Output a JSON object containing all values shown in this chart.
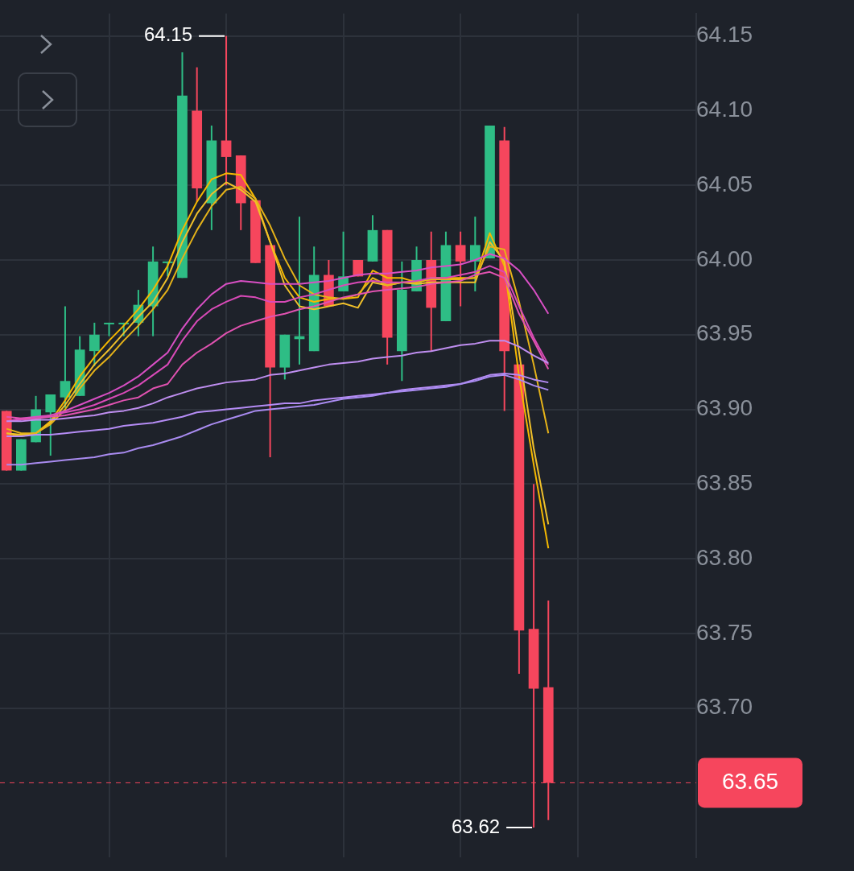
{
  "chart_data": {
    "type": "candlestick",
    "categories": [
      null,
      null,
      null,
      null,
      null,
      null,
      null,
      null,
      null,
      null,
      null,
      null,
      null,
      null,
      null,
      null,
      null,
      null,
      null,
      null,
      null,
      null,
      null,
      null,
      null,
      null,
      null,
      null,
      null,
      null,
      null,
      null,
      null,
      null,
      null,
      null,
      null,
      null
    ],
    "ohlc": [
      [
        63.899,
        63.899,
        63.859,
        63.859
      ],
      [
        63.859,
        63.88,
        63.859,
        63.88
      ],
      [
        63.878,
        63.909,
        63.878,
        63.9
      ],
      [
        63.898,
        63.91,
        63.869,
        63.91
      ],
      [
        63.908,
        63.969,
        63.901,
        63.919
      ],
      [
        63.909,
        63.949,
        63.909,
        63.94
      ],
      [
        63.939,
        63.958,
        63.929,
        63.95
      ],
      [
        63.958,
        63.958,
        63.949,
        63.958
      ],
      [
        63.958,
        63.958,
        63.949,
        63.958
      ],
      [
        63.958,
        63.98,
        63.949,
        63.97
      ],
      [
        63.969,
        64.009,
        63.949,
        63.999
      ],
      [
        63.999,
        63.999,
        63.989,
        63.999
      ],
      [
        63.988,
        64.139,
        63.988,
        64.11
      ],
      [
        64.1,
        64.129,
        64.039,
        64.048
      ],
      [
        64.038,
        64.09,
        64.02,
        64.08
      ],
      [
        64.08,
        64.15,
        64.05,
        64.069
      ],
      [
        64.07,
        64.07,
        64.02,
        64.038
      ],
      [
        64.04,
        64.04,
        63.998,
        63.998
      ],
      [
        64.01,
        64.01,
        63.868,
        63.928
      ],
      [
        63.928,
        63.95,
        63.92,
        63.95
      ],
      [
        63.947,
        64.029,
        63.93,
        63.949
      ],
      [
        63.939,
        64.009,
        63.939,
        63.99
      ],
      [
        63.99,
        64.0,
        63.969,
        63.969
      ],
      [
        63.979,
        64.019,
        63.979,
        63.989
      ],
      [
        64.0,
        64.0,
        63.989,
        63.989
      ],
      [
        63.999,
        64.03,
        63.999,
        64.02
      ],
      [
        64.02,
        64.02,
        63.93,
        63.948
      ],
      [
        63.939,
        63.999,
        63.919,
        63.98
      ],
      [
        63.979,
        64.009,
        63.979,
        64.0
      ],
      [
        64.0,
        64.019,
        63.939,
        63.968
      ],
      [
        63.959,
        64.019,
        63.959,
        64.01
      ],
      [
        64.01,
        64.019,
        63.969,
        63.999
      ],
      [
        63.999,
        64.029,
        63.979,
        64.01
      ],
      [
        64.001,
        64.09,
        64.001,
        64.09
      ],
      [
        64.08,
        64.089,
        63.899,
        63.939
      ],
      [
        63.93,
        63.93,
        63.723,
        63.752
      ],
      [
        63.753,
        63.85,
        63.62,
        63.713
      ],
      [
        63.714,
        63.772,
        63.625,
        63.65
      ]
    ],
    "colors": [
      "#f6465d",
      "#2ebd85",
      "#2ebd85",
      "#2ebd85",
      "#2ebd85",
      "#2ebd85",
      "#2ebd85",
      "#2ebd85",
      "#2ebd85",
      "#2ebd85",
      "#2ebd85",
      "#2ebd85",
      "#2ebd85",
      "#f6465d",
      "#2ebd85",
      "#f6465d",
      "#f6465d",
      "#f6465d",
      "#f6465d",
      "#2ebd85",
      "#2ebd85",
      "#2ebd85",
      "#f6465d",
      "#2ebd85",
      "#f6465d",
      "#2ebd85",
      "#f6465d",
      "#2ebd85",
      "#2ebd85",
      "#f6465d",
      "#2ebd85",
      "#f6465d",
      "#2ebd85",
      "#2ebd85",
      "#f6465d",
      "#f6465d",
      "#f6465d",
      "#f6465d"
    ],
    "series": [
      {
        "type": "line",
        "color": "#a98bf0",
        "values": [
          63.863,
          63.863,
          63.864,
          63.865,
          63.866,
          63.867,
          63.868,
          63.87,
          63.871,
          63.874,
          63.876,
          63.879,
          63.882,
          63.886,
          63.89,
          63.893,
          63.896,
          63.899,
          63.9,
          63.901,
          63.902,
          63.903,
          63.905,
          63.907,
          63.908,
          63.909,
          63.911,
          63.912,
          63.913,
          63.914,
          63.915,
          63.917,
          63.919,
          63.922,
          63.923,
          63.92,
          63.916,
          63.913
        ]
      },
      {
        "type": "line",
        "color": "#b58cf5",
        "values": [
          63.882,
          63.882,
          63.883,
          63.883,
          63.884,
          63.885,
          63.886,
          63.887,
          63.889,
          63.89,
          63.891,
          63.893,
          63.895,
          63.898,
          63.899,
          63.9,
          63.901,
          63.902,
          63.903,
          63.904,
          63.904,
          63.906,
          63.907,
          63.908,
          63.909,
          63.91,
          63.911,
          63.913,
          63.914,
          63.915,
          63.916,
          63.917,
          63.92,
          63.923,
          63.924,
          63.923,
          63.92,
          63.918
        ]
      },
      {
        "type": "line",
        "color": "#bf8ef0",
        "values": [
          63.892,
          63.892,
          63.893,
          63.893,
          63.894,
          63.895,
          63.896,
          63.898,
          63.899,
          63.901,
          63.904,
          63.908,
          63.911,
          63.914,
          63.916,
          63.918,
          63.919,
          63.92,
          63.923,
          63.924,
          63.926,
          63.928,
          63.93,
          63.931,
          63.932,
          63.934,
          63.935,
          63.936,
          63.938,
          63.939,
          63.941,
          63.943,
          63.944,
          63.946,
          63.946,
          63.942,
          63.936,
          63.931
        ]
      },
      {
        "type": "line",
        "color": "#e052b0",
        "values": [
          63.895,
          63.894,
          63.894,
          63.895,
          63.896,
          63.898,
          63.9,
          63.903,
          63.906,
          63.908,
          63.914,
          63.917,
          63.93,
          63.938,
          63.944,
          63.951,
          63.956,
          63.959,
          63.962,
          63.964,
          63.967,
          63.969,
          63.972,
          63.975,
          63.977,
          63.979,
          63.98,
          63.981,
          63.982,
          63.984,
          63.985,
          63.986,
          63.99,
          63.992,
          63.988,
          63.964,
          63.946,
          63.927
        ]
      },
      {
        "type": "line",
        "color": "#d94ab8",
        "values": [
          63.892,
          63.893,
          63.894,
          63.896,
          63.898,
          63.9,
          63.903,
          63.907,
          63.911,
          63.916,
          63.923,
          63.93,
          63.946,
          63.959,
          63.967,
          63.972,
          63.976,
          63.975,
          63.972,
          63.972,
          63.975,
          63.977,
          63.98,
          63.983,
          63.985,
          63.986,
          63.985,
          63.985,
          63.986,
          63.988,
          63.988,
          63.99,
          63.992,
          63.996,
          63.992,
          63.969,
          63.948,
          63.93
        ]
      },
      {
        "type": "line",
        "color": "#d84fc4",
        "values": [
          63.892,
          63.894,
          63.895,
          63.896,
          63.899,
          63.903,
          63.907,
          63.911,
          63.916,
          63.922,
          63.93,
          63.938,
          63.954,
          63.967,
          63.977,
          63.984,
          63.986,
          63.985,
          63.984,
          63.984,
          63.984,
          63.985,
          63.986,
          63.988,
          63.99,
          63.991,
          63.991,
          63.992,
          63.993,
          63.995,
          63.996,
          63.997,
          64.0,
          64.004,
          64.001,
          63.993,
          63.98,
          63.964
        ]
      },
      {
        "type": "line",
        "color": "#e6b319",
        "values": [
          63.887,
          63.884,
          63.884,
          63.89,
          63.9,
          63.914,
          63.926,
          63.935,
          63.946,
          63.956,
          63.967,
          63.98,
          64.001,
          64.02,
          64.036,
          64.047,
          64.049,
          64.041,
          64.023,
          64.001,
          63.983,
          63.977,
          63.975,
          63.974,
          63.977,
          63.988,
          63.983,
          63.985,
          63.985,
          63.987,
          63.987,
          63.987,
          63.988,
          64.009,
          64.007,
          63.972,
          63.93,
          63.884
        ]
      },
      {
        "type": "line",
        "color": "#f0c02a",
        "values": [
          63.884,
          63.883,
          63.884,
          63.891,
          63.903,
          63.917,
          63.93,
          63.94,
          63.951,
          63.962,
          63.972,
          63.988,
          64.012,
          64.031,
          64.044,
          64.052,
          64.047,
          64.039,
          64.012,
          63.983,
          63.969,
          63.967,
          63.969,
          63.971,
          63.968,
          63.985,
          63.983,
          63.985,
          63.984,
          63.985,
          63.985,
          63.985,
          63.985,
          64.012,
          63.999,
          63.938,
          63.874,
          63.823
        ]
      },
      {
        "type": "line",
        "color": "#f5b800",
        "values": [
          63.884,
          63.882,
          63.884,
          63.892,
          63.906,
          63.922,
          63.935,
          63.946,
          63.956,
          63.967,
          63.98,
          63.996,
          64.02,
          64.039,
          64.054,
          64.058,
          64.057,
          64.041,
          64.012,
          63.988,
          63.975,
          63.972,
          63.974,
          63.974,
          63.975,
          63.993,
          63.988,
          63.988,
          63.985,
          63.988,
          63.988,
          63.988,
          63.988,
          64.018,
          63.996,
          63.922,
          63.863,
          63.807
        ]
      }
    ],
    "ylim": [
      63.6,
      64.165
    ],
    "yticks": [
      {
        "value": 63.7,
        "label": "63.70"
      },
      {
        "value": 63.75,
        "label": "63.75"
      },
      {
        "value": 63.8,
        "label": "63.80"
      },
      {
        "value": 63.85,
        "label": "63.85"
      },
      {
        "value": 63.9,
        "label": "63.90"
      },
      {
        "value": 63.95,
        "label": "63.95"
      },
      {
        "value": 64.0,
        "label": "64.00"
      },
      {
        "value": 64.05,
        "label": "64.05"
      },
      {
        "value": 64.1,
        "label": "64.10"
      },
      {
        "value": 64.15,
        "label": "64.15"
      }
    ],
    "ref_lines": [
      {
        "axis": "y",
        "value": 63.65,
        "label": "63.65",
        "color": "#f6465d",
        "line_style": "dashed"
      }
    ],
    "annotations": [
      "64.15",
      "63.62"
    ],
    "grid": true,
    "legend": false,
    "marker": "none",
    "line_style": "solid"
  }
}
